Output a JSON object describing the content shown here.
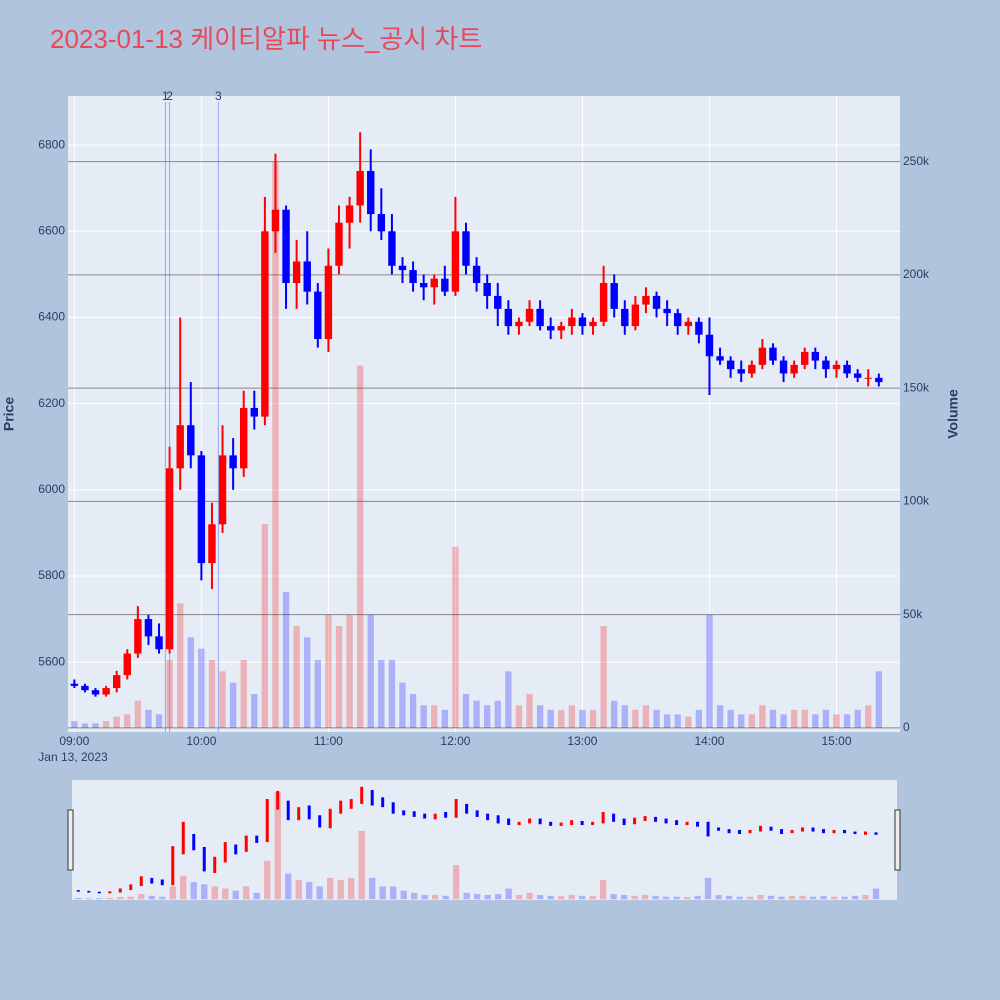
{
  "chart_data": {
    "type": "candlestick",
    "title": "2023-01-13 케이티알파 뉴스_공시 차트",
    "y_title": "Price",
    "y2_title": "Volume",
    "x_date_label": "Jan 13, 2023",
    "increasing_color": "#ff0000",
    "decreasing_color": "#0000ff",
    "xlim": [
      "08:57",
      "15:30"
    ],
    "xticks": [
      "09:00",
      "10:00",
      "11:00",
      "12:00",
      "13:00",
      "14:00",
      "15:00"
    ],
    "ylim": [
      5438,
      6914
    ],
    "yticks": [
      5600,
      5800,
      6000,
      6200,
      6400,
      6600,
      6800
    ],
    "y2lim": [
      -1800,
      279000
    ],
    "y2ticks": [
      0,
      {
        "value": 50000,
        "label": "50k"
      },
      {
        "value": 100000,
        "label": "100k"
      },
      {
        "value": 150000,
        "label": "150k"
      },
      {
        "value": 200000,
        "label": "200k"
      },
      {
        "value": 250000,
        "label": "250k"
      }
    ],
    "annotations": [
      {
        "x": "09:43",
        "text": "1"
      },
      {
        "x": "09:45",
        "text": "2"
      },
      {
        "x": "10:08",
        "text": "3"
      }
    ],
    "x": [
      "09:00",
      "09:05",
      "09:10",
      "09:15",
      "09:20",
      "09:25",
      "09:30",
      "09:35",
      "09:40",
      "09:45",
      "09:50",
      "09:55",
      "10:00",
      "10:05",
      "10:10",
      "10:15",
      "10:20",
      "10:25",
      "10:30",
      "10:35",
      "10:40",
      "10:45",
      "10:50",
      "10:55",
      "11:00",
      "11:05",
      "11:10",
      "11:15",
      "11:20",
      "11:25",
      "11:30",
      "11:35",
      "11:40",
      "11:45",
      "11:50",
      "11:55",
      "12:00",
      "12:05",
      "12:10",
      "12:15",
      "12:20",
      "12:25",
      "12:30",
      "12:35",
      "12:40",
      "12:45",
      "12:50",
      "12:55",
      "13:00",
      "13:05",
      "13:10",
      "13:15",
      "13:20",
      "13:25",
      "13:30",
      "13:35",
      "13:40",
      "13:45",
      "13:50",
      "13:55",
      "14:00",
      "14:05",
      "14:10",
      "14:15",
      "14:20",
      "14:25",
      "14:30",
      "14:35",
      "14:40",
      "14:45",
      "14:50",
      "14:55",
      "15:00",
      "15:05",
      "15:10",
      "15:15",
      "15:20"
    ],
    "open": [
      5550,
      5545,
      5535,
      5525,
      5540,
      5570,
      5620,
      5700,
      5660,
      5630,
      6050,
      6150,
      6080,
      5830,
      5920,
      6080,
      6050,
      6190,
      6170,
      6600,
      6650,
      6480,
      6530,
      6460,
      6350,
      6520,
      6620,
      6660,
      6740,
      6640,
      6600,
      6520,
      6510,
      6480,
      6470,
      6490,
      6460,
      6600,
      6520,
      6480,
      6450,
      6420,
      6380,
      6390,
      6420,
      6380,
      6370,
      6380,
      6400,
      6380,
      6390,
      6480,
      6420,
      6380,
      6430,
      6450,
      6420,
      6410,
      6380,
      6390,
      6360,
      6310,
      6300,
      6280,
      6270,
      6290,
      6330,
      6300,
      6270,
      6290,
      6320,
      6300,
      6280,
      6290,
      6270,
      6260,
      6260
    ],
    "high": [
      5560,
      5550,
      5540,
      5545,
      5580,
      5630,
      5730,
      5710,
      5690,
      6100,
      6400,
      6250,
      6090,
      5970,
      6150,
      6120,
      6230,
      6230,
      6680,
      6780,
      6660,
      6580,
      6600,
      6480,
      6560,
      6660,
      6680,
      6830,
      6790,
      6700,
      6640,
      6540,
      6530,
      6500,
      6500,
      6520,
      6680,
      6620,
      6540,
      6500,
      6480,
      6440,
      6400,
      6440,
      6440,
      6400,
      6390,
      6420,
      6410,
      6400,
      6520,
      6500,
      6440,
      6450,
      6470,
      6460,
      6440,
      6420,
      6400,
      6400,
      6400,
      6330,
      6310,
      6300,
      6300,
      6350,
      6340,
      6310,
      6300,
      6330,
      6330,
      6310,
      6300,
      6300,
      6280,
      6280,
      6270
    ],
    "low": [
      5540,
      5530,
      5520,
      5520,
      5530,
      5560,
      5610,
      5640,
      5620,
      5620,
      6000,
      6050,
      5790,
      5770,
      5900,
      6000,
      6030,
      6140,
      6150,
      6550,
      6420,
      6420,
      6430,
      6330,
      6320,
      6500,
      6560,
      6620,
      6600,
      6580,
      6500,
      6480,
      6460,
      6440,
      6430,
      6450,
      6450,
      6500,
      6460,
      6420,
      6380,
      6360,
      6360,
      6380,
      6370,
      6350,
      6350,
      6360,
      6360,
      6360,
      6380,
      6400,
      6360,
      6370,
      6410,
      6400,
      6380,
      6360,
      6360,
      6340,
      6220,
      6290,
      6260,
      6250,
      6260,
      6280,
      6290,
      6250,
      6260,
      6280,
      6280,
      6260,
      6260,
      6260,
      6250,
      6240,
      6240
    ],
    "close": [
      5545,
      5535,
      5525,
      5540,
      5570,
      5620,
      5700,
      5660,
      5630,
      6050,
      6150,
      6080,
      5830,
      5920,
      6080,
      6050,
      6190,
      6170,
      6600,
      6650,
      6480,
      6530,
      6460,
      6350,
      6520,
      6620,
      6660,
      6740,
      6640,
      6600,
      6520,
      6510,
      6480,
      6470,
      6490,
      6460,
      6600,
      6520,
      6480,
      6450,
      6420,
      6380,
      6390,
      6420,
      6380,
      6370,
      6380,
      6400,
      6380,
      6390,
      6480,
      6420,
      6380,
      6430,
      6450,
      6420,
      6410,
      6380,
      6390,
      6360,
      6310,
      6300,
      6280,
      6270,
      6290,
      6330,
      6300,
      6270,
      6290,
      6320,
      6300,
      6280,
      6290,
      6270,
      6260,
      6260,
      6250
    ],
    "volume": [
      3000,
      2000,
      2000,
      3000,
      5000,
      6000,
      12000,
      8000,
      6000,
      30000,
      55000,
      40000,
      35000,
      30000,
      25000,
      20000,
      30000,
      15000,
      90000,
      250000,
      60000,
      45000,
      40000,
      30000,
      50000,
      45000,
      50000,
      160000,
      50000,
      30000,
      30000,
      20000,
      15000,
      10000,
      10000,
      8000,
      80000,
      15000,
      12000,
      10000,
      12000,
      25000,
      10000,
      15000,
      10000,
      8000,
      8000,
      10000,
      8000,
      8000,
      45000,
      12000,
      10000,
      8000,
      10000,
      8000,
      6000,
      6000,
      5000,
      8000,
      50000,
      10000,
      8000,
      6000,
      6000,
      10000,
      8000,
      6000,
      8000,
      8000,
      6000,
      8000,
      6000,
      6000,
      8000,
      10000,
      25000
    ]
  }
}
